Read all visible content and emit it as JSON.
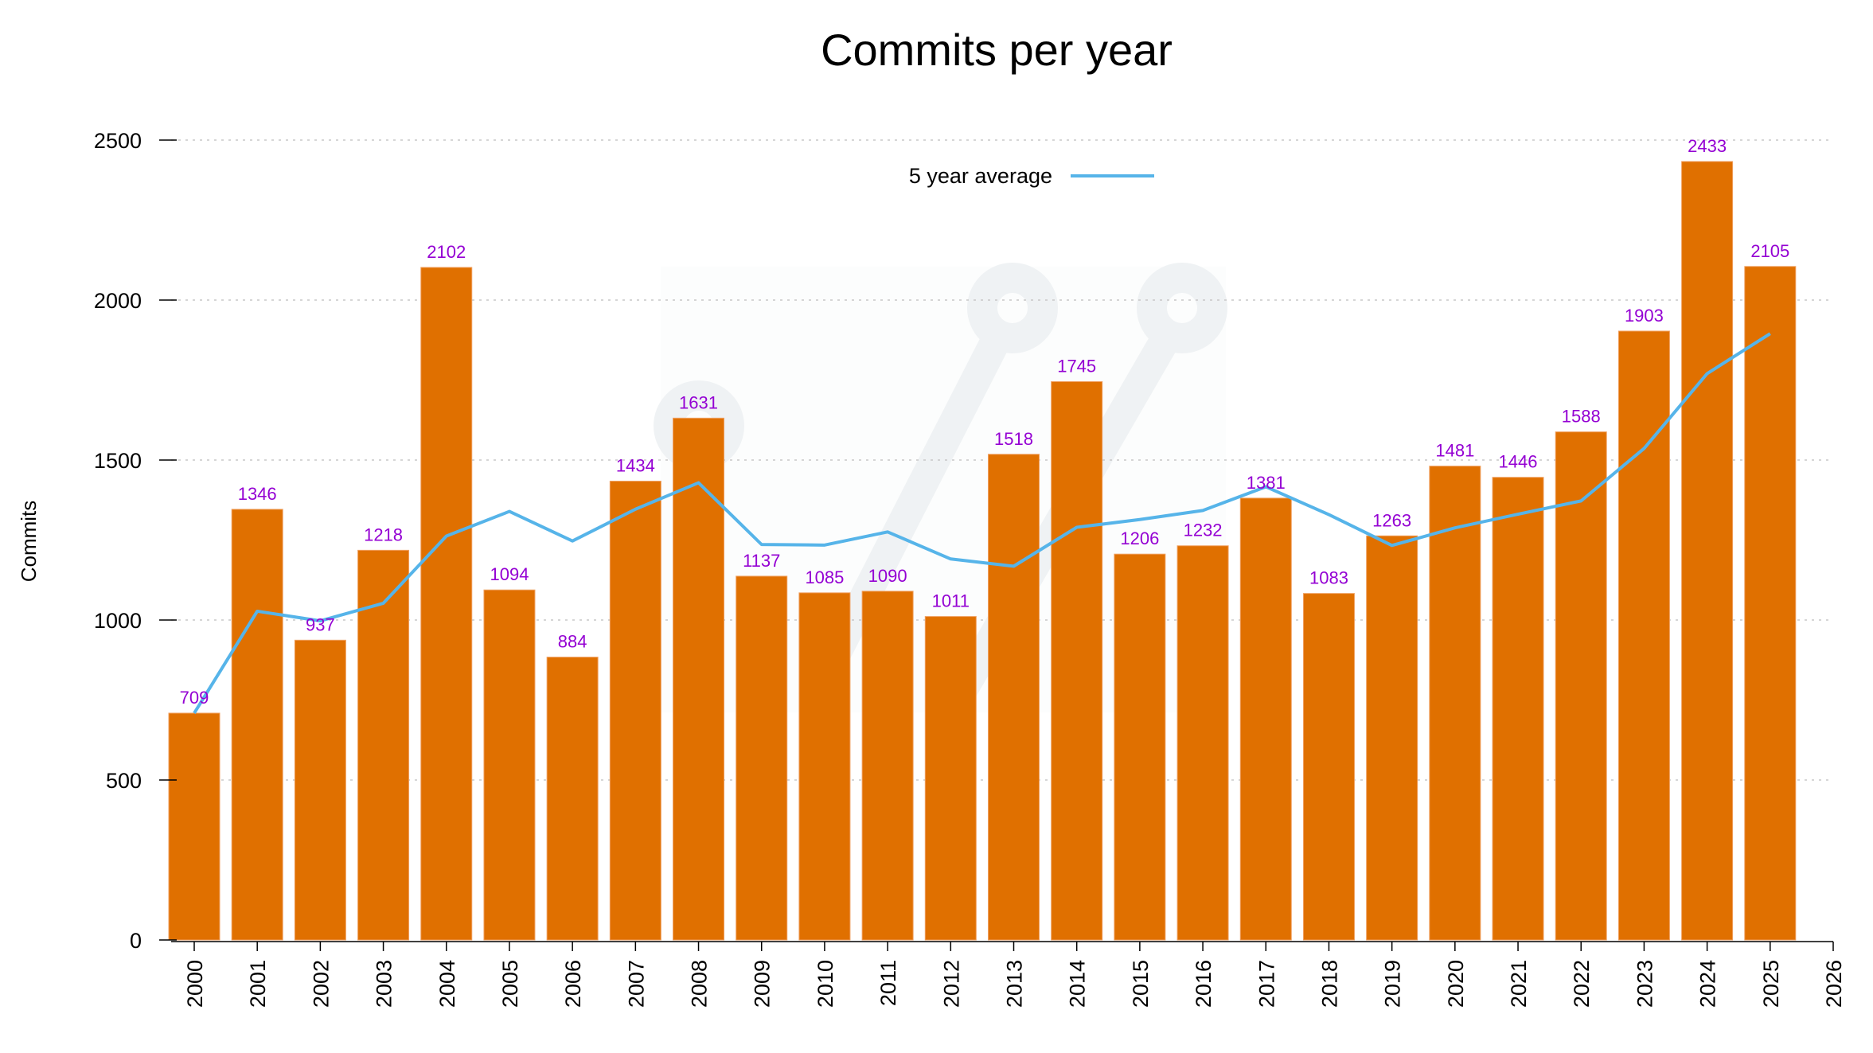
{
  "chart_data": {
    "type": "bar",
    "title": "Commits per year",
    "xlabel": "",
    "ylabel": "Commits",
    "ylim": [
      0,
      2500
    ],
    "xlim": [
      2000,
      2026
    ],
    "yticks": [
      0,
      500,
      1000,
      1500,
      2000,
      2500
    ],
    "xticks": [
      "2000",
      "2001",
      "2002",
      "2003",
      "2004",
      "2005",
      "2006",
      "2007",
      "2008",
      "2009",
      "2010",
      "2011",
      "2012",
      "2013",
      "2014",
      "2015",
      "2016",
      "2017",
      "2018",
      "2019",
      "2020",
      "2021",
      "2022",
      "2023",
      "2024",
      "2025",
      "2026"
    ],
    "grid": "horizontal dotted",
    "legend": {
      "placement": "top-center",
      "entries": [
        "5 year average"
      ]
    },
    "categories": [
      "2000",
      "2001",
      "2002",
      "2003",
      "2004",
      "2005",
      "2006",
      "2007",
      "2008",
      "2009",
      "2010",
      "2011",
      "2012",
      "2013",
      "2014",
      "2015",
      "2016",
      "2017",
      "2018",
      "2019",
      "2020",
      "2021",
      "2022",
      "2023",
      "2024",
      "2025"
    ],
    "series": [
      {
        "name": "Commits",
        "type": "bar",
        "color": "#e07000",
        "label_color": "#9400d3",
        "values": [
          709,
          1346,
          937,
          1218,
          2102,
          1094,
          884,
          1434,
          1631,
          1137,
          1085,
          1090,
          1011,
          1518,
          1745,
          1206,
          1232,
          1381,
          1083,
          1263,
          1481,
          1446,
          1588,
          1903,
          2433,
          2105
        ]
      },
      {
        "name": "5 year average",
        "type": "line",
        "color": "#56b4e9",
        "values": [
          709,
          1027.5,
          997.3,
          1052.5,
          1262.4,
          1339.4,
          1247,
          1346.4,
          1429,
          1236,
          1234.2,
          1275.4,
          1190.8,
          1168.2,
          1289.8,
          1314,
          1342.4,
          1416.4,
          1329.4,
          1233,
          1288,
          1330.8,
          1372.2,
          1536.2,
          1770.2,
          1895
        ]
      }
    ]
  }
}
